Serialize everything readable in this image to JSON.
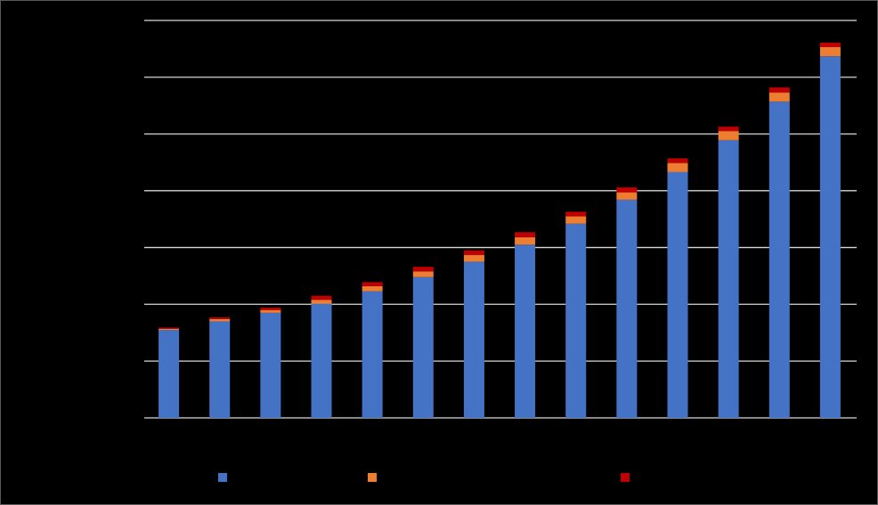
{
  "chart_data": {
    "type": "bar",
    "stacked": true,
    "title": "",
    "xlabel": "",
    "ylabel": "",
    "categories": [
      "",
      "",
      "",
      "",
      "",
      "",
      "",
      "",
      "",
      "",
      "",
      "",
      "",
      ""
    ],
    "ylim": [
      0,
      7
    ],
    "grid": true,
    "legend": "bottom",
    "series": [
      {
        "color": "#4472c4",
        "values": [
          1.55,
          1.7,
          1.85,
          2.01,
          2.23,
          2.48,
          2.75,
          3.05,
          3.42,
          3.84,
          4.33,
          4.89,
          5.57,
          6.37
        ]
      },
      {
        "color": "#ed7d31",
        "values": [
          0.02,
          0.04,
          0.05,
          0.07,
          0.09,
          0.1,
          0.12,
          0.13,
          0.13,
          0.13,
          0.16,
          0.16,
          0.16,
          0.16
        ]
      },
      {
        "color": "#c00000",
        "values": [
          0.02,
          0.03,
          0.04,
          0.07,
          0.07,
          0.08,
          0.08,
          0.09,
          0.08,
          0.09,
          0.08,
          0.08,
          0.09,
          0.08
        ]
      }
    ]
  }
}
